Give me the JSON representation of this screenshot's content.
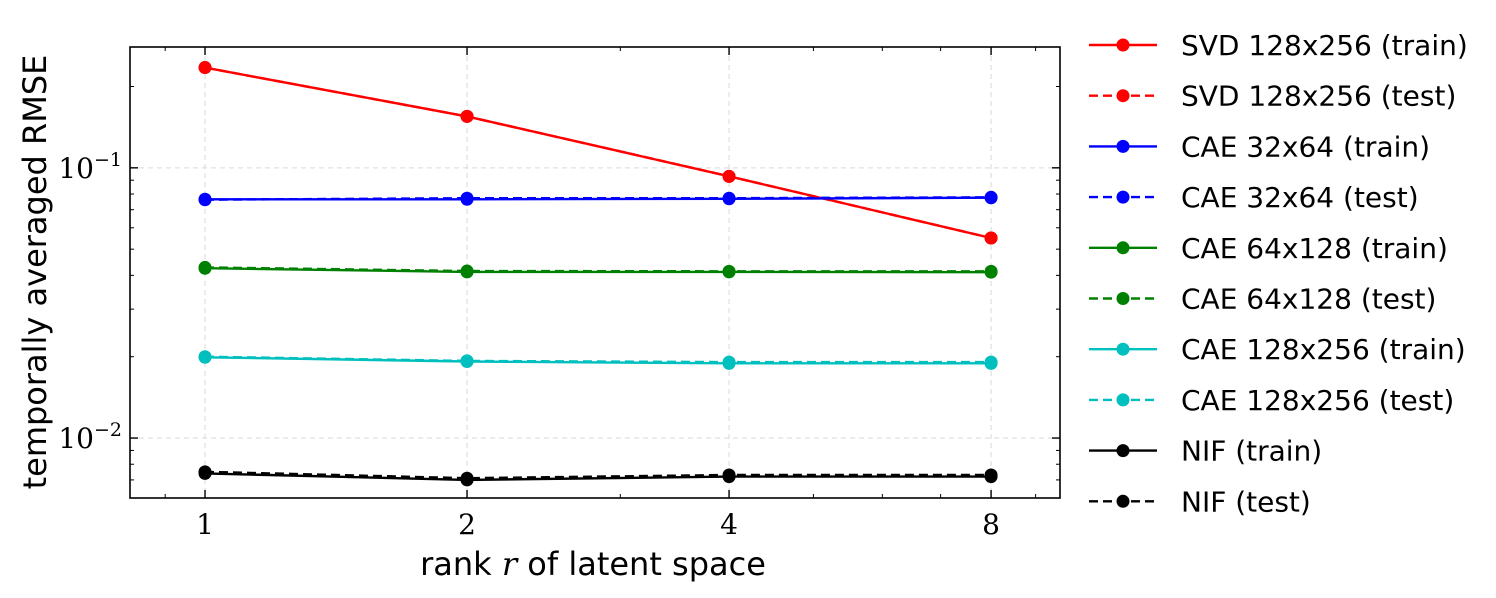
{
  "chart_data": {
    "type": "line",
    "xlabel_prefix": "rank ",
    "xlabel_var": "r",
    "xlabel_suffix": " of latent space",
    "ylabel": "temporally averaged RMSE",
    "x_scale": "log2",
    "y_scale": "log",
    "xlim": [
      0.82,
      9.6
    ],
    "ylim": [
      0.006,
      0.28
    ],
    "x_ticks": [
      1,
      2,
      4,
      8
    ],
    "x_tick_labels": [
      "1",
      "2",
      "4",
      "8"
    ],
    "y_tick_labels": [
      {
        "value": 0.1,
        "base": "10",
        "exp": "−1"
      },
      {
        "value": 0.01,
        "base": "10",
        "exp": "−2"
      }
    ],
    "grid": true,
    "legend_position": "outside-right",
    "x": [
      1,
      2,
      4,
      8
    ],
    "series": [
      {
        "name": "SVD 128x256 (train)",
        "color": "#ff0000",
        "linestyle": "solid",
        "values": [
          0.235,
          0.155,
          0.093,
          0.055
        ]
      },
      {
        "name": "SVD 128x256 (test)",
        "color": "#ff0000",
        "linestyle": "dashed",
        "values": [
          0.235,
          0.155,
          0.093,
          0.055
        ]
      },
      {
        "name": "CAE 32x64 (train)",
        "color": "#0000ff",
        "linestyle": "solid",
        "values": [
          0.0765,
          0.0765,
          0.0768,
          0.0775
        ]
      },
      {
        "name": "CAE 32x64 (test)",
        "color": "#0000ff",
        "linestyle": "dashed",
        "values": [
          0.0762,
          0.0772,
          0.0772,
          0.0778
        ]
      },
      {
        "name": "CAE 64x128 (train)",
        "color": "#008000",
        "linestyle": "solid",
        "values": [
          0.0425,
          0.0412,
          0.0412,
          0.0411
        ]
      },
      {
        "name": "CAE 64x128 (test)",
        "color": "#008000",
        "linestyle": "dashed",
        "values": [
          0.0428,
          0.0415,
          0.0414,
          0.0414
        ]
      },
      {
        "name": "CAE 128x256 (train)",
        "color": "#00bfbf",
        "linestyle": "solid",
        "values": [
          0.0199,
          0.0192,
          0.0189,
          0.0189
        ]
      },
      {
        "name": "CAE 128x256 (test)",
        "color": "#00bfbf",
        "linestyle": "dashed",
        "values": [
          0.02,
          0.0193,
          0.0191,
          0.0191
        ]
      },
      {
        "name": "NIF (train)",
        "color": "#000000",
        "linestyle": "solid",
        "values": [
          0.0074,
          0.007,
          0.0072,
          0.0072
        ]
      },
      {
        "name": "NIF (test)",
        "color": "#000000",
        "linestyle": "dashed",
        "values": [
          0.0075,
          0.0071,
          0.0073,
          0.0073
        ]
      }
    ]
  }
}
